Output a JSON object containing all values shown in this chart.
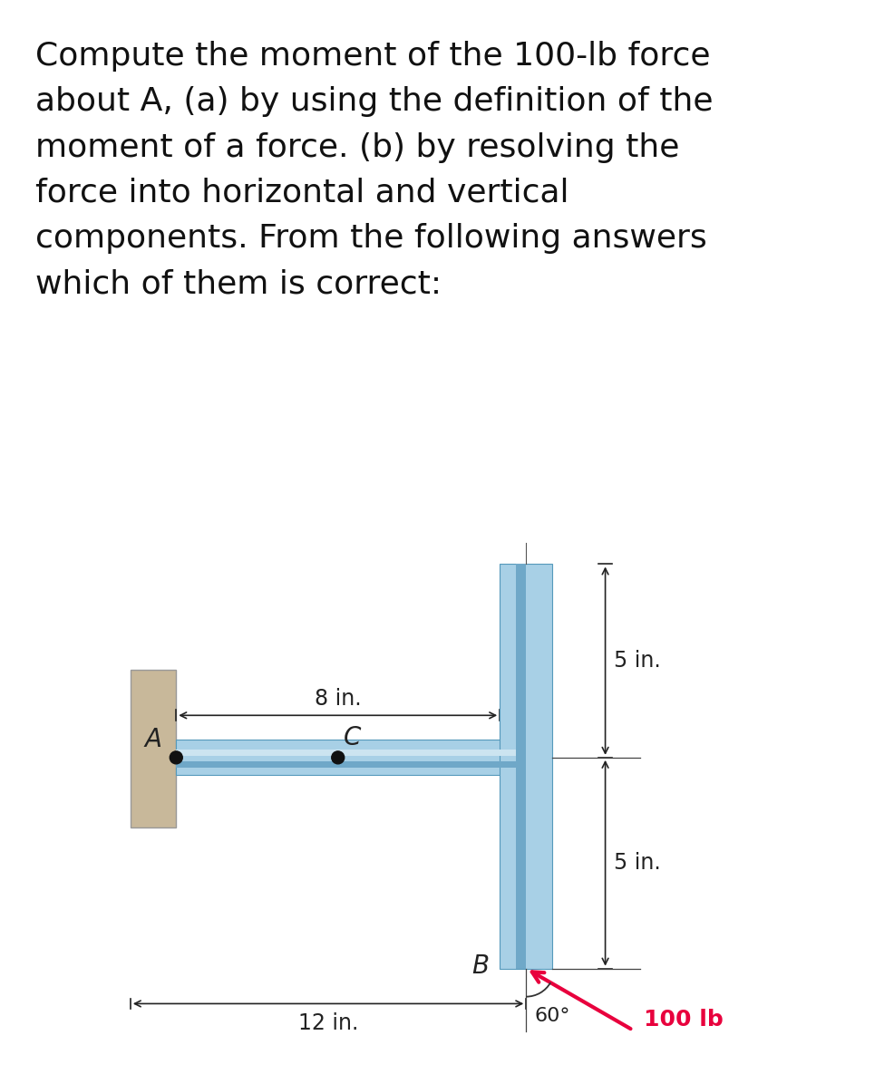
{
  "title_text": "Compute the moment of the 100-lb force\nabout A, (a) by using the definition of the\nmoment of a force. (b) by resolving the\nforce into horizontal and vertical\ncomponents. From the following answers\nwhich of them is correct:",
  "title_fontsize": 26,
  "bg_color": "#ffffff",
  "wall_color": "#c8b89a",
  "beam_color": "#a8d0e6",
  "beam_color_dark": "#6fa8c8",
  "dim_color": "#222222",
  "force_color": "#e8003d",
  "label_color": "#222222",
  "dot_color": "#111111",
  "angle_text": "60°",
  "force_text": "100 lb",
  "dim_8in_label": "8 in.",
  "dim_5in_top_label": "5 in.",
  "dim_5in_bot_label": "5 in.",
  "dim_12in_label": "12 in."
}
